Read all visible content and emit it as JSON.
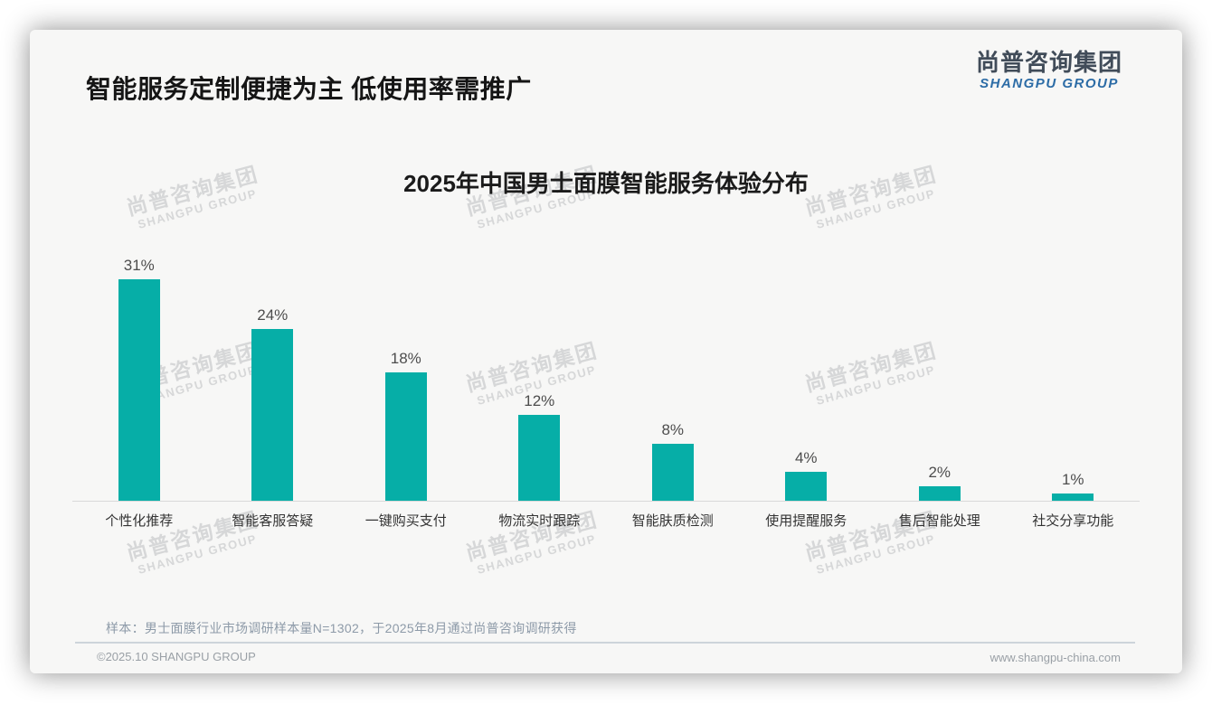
{
  "page": {
    "title": "智能服务定制便捷为主 低使用率需推广",
    "logo": {
      "cn": "尚普咨询集团",
      "en": "SHANGPU GROUP"
    },
    "watermark": {
      "cn": "尚普咨询集团",
      "en": "SHANGPU GROUP"
    },
    "note": "样本：男士面膜行业市场调研样本量N=1302，于2025年8月通过尚普咨询调研获得",
    "footer": {
      "left": "©2025.10 SHANGPU GROUP",
      "right": "www.shangpu-china.com"
    }
  },
  "chart_data": {
    "type": "bar",
    "title": "2025年中国男士面膜智能服务体验分布",
    "categories": [
      "个性化推荐",
      "智能客服答疑",
      "一键购买支付",
      "物流实时跟踪",
      "智能肤质检测",
      "使用提醒服务",
      "售后智能处理",
      "社交分享功能"
    ],
    "values": [
      31,
      24,
      18,
      12,
      8,
      4,
      2,
      1
    ],
    "unit": "%",
    "xlabel": "",
    "ylabel": "",
    "ylim": [
      0,
      34
    ],
    "grid": false,
    "legend": "none",
    "bar_color": "#06aea7",
    "value_label_color": "#4d4d4d",
    "baseline_color": "#d9d9d9"
  }
}
